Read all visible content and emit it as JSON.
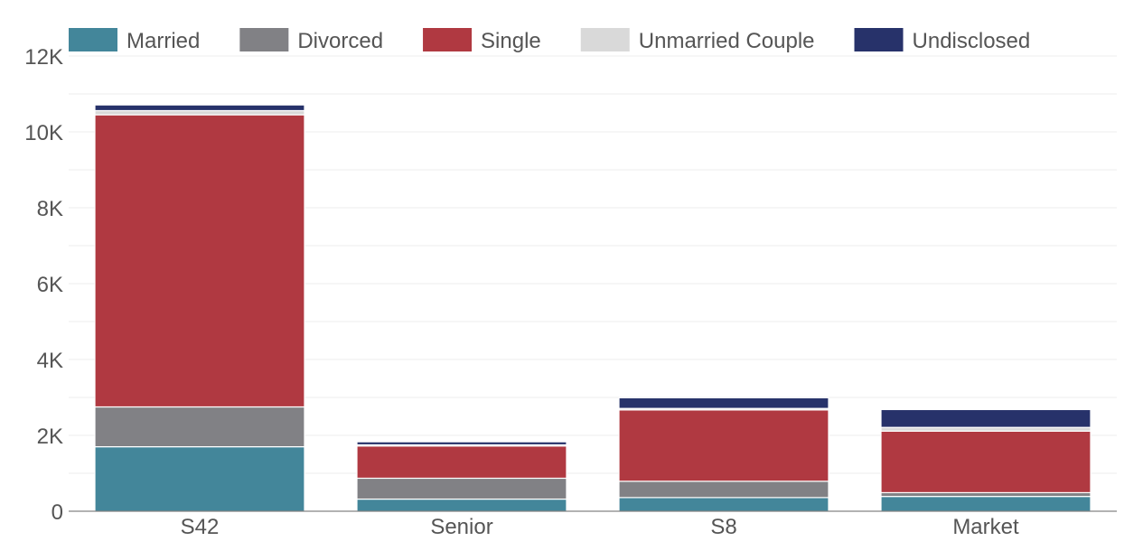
{
  "chart_data": {
    "type": "bar",
    "stacked": true,
    "categories": [
      "S42",
      "Senior",
      "S8",
      "Market"
    ],
    "series": [
      {
        "name": "Married",
        "color": "#43869a",
        "values": [
          1700,
          320,
          360,
          390
        ]
      },
      {
        "name": "Divorced",
        "color": "#818185",
        "values": [
          1050,
          550,
          430,
          100
        ]
      },
      {
        "name": "Single",
        "color": "#b03941",
        "values": [
          7700,
          850,
          1880,
          1620
        ]
      },
      {
        "name": "Unmarried Couple",
        "color": "#d9d9d9",
        "values": [
          110,
          30,
          40,
          100
        ]
      },
      {
        "name": "Undisclosed",
        "color": "#27326a",
        "values": [
          150,
          80,
          280,
          470
        ]
      }
    ],
    "yticks": [
      0,
      2000,
      4000,
      6000,
      8000,
      10000,
      12000
    ],
    "ytick_labels": [
      "0",
      "2K",
      "4K",
      "6K",
      "8K",
      "10K",
      "12K"
    ],
    "ylim": [
      0,
      12000
    ],
    "grid": true,
    "legend": "top",
    "title": "",
    "xlabel": "",
    "ylabel": ""
  }
}
